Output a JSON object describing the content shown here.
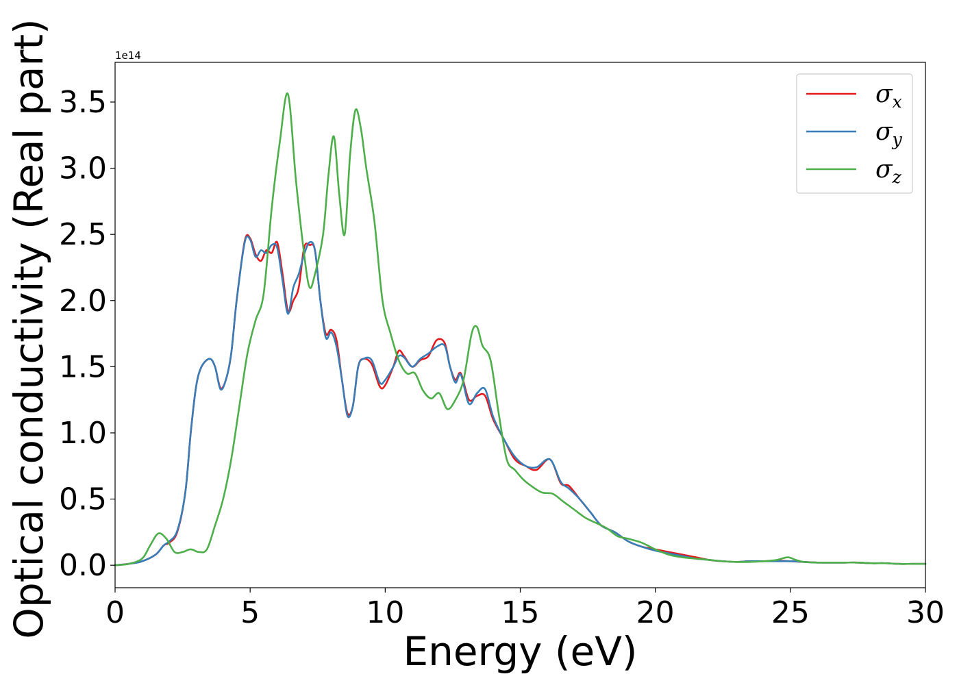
{
  "chart_data": {
    "type": "line",
    "xlabel": "Energy (eV)",
    "ylabel": "Optical conductivity (Real part)",
    "y_offset_label": "1e14",
    "xlim": [
      0,
      30
    ],
    "ylim": [
      -0.17,
      3.8
    ],
    "xticks": [
      0,
      5,
      10,
      15,
      20,
      25,
      30
    ],
    "xtick_labels": [
      "0",
      "5",
      "10",
      "15",
      "20",
      "25",
      "30"
    ],
    "yticks": [
      0.0,
      0.5,
      1.0,
      1.5,
      2.0,
      2.5,
      3.0,
      3.5
    ],
    "ytick_labels": [
      "0.0",
      "0.5",
      "1.0",
      "1.5",
      "2.0",
      "2.5",
      "3.0",
      "3.5"
    ],
    "grid": false,
    "legend": {
      "position": "top-right",
      "entries": [
        {
          "symbol": "σ",
          "sub": "x",
          "color": "#e41a1c"
        },
        {
          "symbol": "σ",
          "sub": "y",
          "color": "#377eb8"
        },
        {
          "symbol": "σ",
          "sub": "z",
          "color": "#4daf4a"
        }
      ]
    },
    "series": [
      {
        "color": "#e41a1c",
        "x": [
          0,
          0.5,
          1,
          1.5,
          1.8,
          2,
          2.3,
          2.6,
          2.8,
          3.0,
          3.2,
          3.5,
          3.7,
          3.9,
          4.1,
          4.3,
          4.5,
          4.8,
          5.0,
          5.2,
          5.4,
          5.6,
          5.8,
          6.0,
          6.2,
          6.4,
          6.6,
          6.8,
          7.0,
          7.2,
          7.4,
          7.6,
          7.8,
          8.0,
          8.2,
          8.4,
          8.6,
          8.8,
          9.0,
          9.2,
          9.5,
          9.8,
          10.0,
          10.3,
          10.5,
          10.7,
          11.0,
          11.3,
          11.6,
          11.9,
          12.2,
          12.4,
          12.6,
          12.8,
          13.1,
          13.4,
          13.7,
          14.0,
          14.4,
          14.8,
          15.2,
          15.6,
          16.1,
          16.5,
          16.8,
          17.2,
          17.6,
          18.0,
          18.5,
          19.0,
          19.5,
          20.0,
          20.5,
          21,
          21.5,
          22,
          22.5,
          23,
          23.5,
          24,
          24.5,
          25,
          25.5,
          26,
          26.5,
          27,
          27.5,
          28,
          28.5,
          29,
          29.5,
          30
        ],
        "y": [
          0,
          0.01,
          0.03,
          0.08,
          0.15,
          0.17,
          0.25,
          0.55,
          1.0,
          1.35,
          1.5,
          1.56,
          1.5,
          1.34,
          1.4,
          1.6,
          2.0,
          2.45,
          2.47,
          2.35,
          2.3,
          2.38,
          2.36,
          2.44,
          2.2,
          1.92,
          2.0,
          2.1,
          2.4,
          2.42,
          2.38,
          2.0,
          1.75,
          1.78,
          1.7,
          1.4,
          1.15,
          1.2,
          1.5,
          1.56,
          1.52,
          1.35,
          1.36,
          1.5,
          1.62,
          1.58,
          1.5,
          1.55,
          1.58,
          1.7,
          1.68,
          1.5,
          1.4,
          1.45,
          1.25,
          1.28,
          1.28,
          1.1,
          0.95,
          0.8,
          0.75,
          0.72,
          0.8,
          0.62,
          0.6,
          0.5,
          0.4,
          0.3,
          0.25,
          0.18,
          0.14,
          0.12,
          0.1,
          0.08,
          0.06,
          0.04,
          0.03,
          0.025,
          0.03,
          0.03,
          0.035,
          0.03,
          0.025,
          0.02,
          0.02,
          0.02,
          0.02,
          0.015,
          0.015,
          0.01,
          0.01,
          0.01
        ]
      },
      {
        "color": "#377eb8",
        "x": [
          0,
          0.5,
          1,
          1.5,
          1.8,
          2,
          2.3,
          2.6,
          2.8,
          3.0,
          3.2,
          3.5,
          3.7,
          3.9,
          4.1,
          4.3,
          4.5,
          4.8,
          5.0,
          5.2,
          5.4,
          5.6,
          5.8,
          6.0,
          6.2,
          6.4,
          6.6,
          6.8,
          7.0,
          7.2,
          7.4,
          7.6,
          7.8,
          8.0,
          8.2,
          8.4,
          8.6,
          8.8,
          9.0,
          9.2,
          9.5,
          9.8,
          10.0,
          10.3,
          10.5,
          10.7,
          11.0,
          11.3,
          11.6,
          11.9,
          12.2,
          12.4,
          12.6,
          12.8,
          13.1,
          13.4,
          13.7,
          14.0,
          14.4,
          14.8,
          15.2,
          15.6,
          16.1,
          16.5,
          16.8,
          17.2,
          17.6,
          18.0,
          18.5,
          19.0,
          19.5,
          20.0,
          20.5,
          21,
          21.5,
          22,
          22.5,
          23,
          23.5,
          24,
          24.5,
          25,
          25.5,
          26,
          26.5,
          27,
          27.5,
          28,
          28.5,
          29,
          29.5,
          30
        ],
        "y": [
          0,
          0.01,
          0.03,
          0.08,
          0.15,
          0.18,
          0.26,
          0.55,
          1.0,
          1.35,
          1.5,
          1.56,
          1.5,
          1.33,
          1.4,
          1.6,
          2.0,
          2.44,
          2.46,
          2.33,
          2.38,
          2.36,
          2.42,
          2.4,
          2.15,
          1.9,
          2.1,
          2.2,
          2.35,
          2.44,
          2.38,
          2.0,
          1.72,
          1.76,
          1.65,
          1.4,
          1.13,
          1.2,
          1.5,
          1.56,
          1.55,
          1.38,
          1.4,
          1.5,
          1.58,
          1.57,
          1.5,
          1.56,
          1.6,
          1.65,
          1.66,
          1.5,
          1.38,
          1.44,
          1.22,
          1.3,
          1.33,
          1.12,
          0.95,
          0.82,
          0.75,
          0.74,
          0.8,
          0.63,
          0.58,
          0.5,
          0.4,
          0.3,
          0.25,
          0.18,
          0.14,
          0.11,
          0.09,
          0.07,
          0.05,
          0.04,
          0.03,
          0.025,
          0.03,
          0.03,
          0.03,
          0.03,
          0.025,
          0.02,
          0.02,
          0.02,
          0.02,
          0.015,
          0.015,
          0.01,
          0.01,
          0.01
        ]
      },
      {
        "color": "#4daf4a",
        "x": [
          0,
          0.5,
          1,
          1.3,
          1.6,
          1.9,
          2.2,
          2.5,
          2.8,
          3.1,
          3.4,
          3.7,
          4.0,
          4.3,
          4.6,
          4.9,
          5.2,
          5.5,
          5.8,
          6.1,
          6.4,
          6.7,
          7.0,
          7.2,
          7.4,
          7.7,
          7.9,
          8.1,
          8.3,
          8.5,
          8.7,
          8.9,
          9.1,
          9.3,
          9.6,
          9.9,
          10.2,
          10.5,
          10.8,
          11.1,
          11.4,
          11.7,
          12.0,
          12.3,
          12.6,
          12.9,
          13.2,
          13.4,
          13.6,
          13.9,
          14.2,
          14.5,
          14.8,
          15.1,
          15.4,
          15.8,
          16.2,
          16.6,
          17.0,
          17.4,
          17.8,
          18.2,
          18.6,
          19.0,
          19.5,
          20.0,
          20.5,
          21,
          21.5,
          22,
          22.5,
          23,
          23.5,
          24,
          24.5,
          24.9,
          25.2,
          25.5,
          26,
          26.5,
          27,
          27.5,
          28,
          28.5,
          29,
          29.5,
          30
        ],
        "y": [
          0,
          0.01,
          0.05,
          0.15,
          0.24,
          0.2,
          0.1,
          0.1,
          0.12,
          0.1,
          0.12,
          0.3,
          0.5,
          0.8,
          1.2,
          1.6,
          1.85,
          2.05,
          2.7,
          3.2,
          3.56,
          2.9,
          2.35,
          2.1,
          2.2,
          2.5,
          2.95,
          3.24,
          2.8,
          2.5,
          3.1,
          3.44,
          3.3,
          3.0,
          2.6,
          2.0,
          1.75,
          1.55,
          1.45,
          1.45,
          1.32,
          1.26,
          1.3,
          1.18,
          1.25,
          1.4,
          1.75,
          1.8,
          1.66,
          1.55,
          1.15,
          0.8,
          0.72,
          0.65,
          0.6,
          0.55,
          0.54,
          0.48,
          0.42,
          0.36,
          0.32,
          0.28,
          0.22,
          0.2,
          0.17,
          0.12,
          0.08,
          0.06,
          0.05,
          0.04,
          0.03,
          0.025,
          0.025,
          0.03,
          0.04,
          0.06,
          0.04,
          0.025,
          0.02,
          0.02,
          0.02,
          0.02,
          0.015,
          0.015,
          0.01,
          0.01,
          0.01
        ]
      }
    ]
  }
}
